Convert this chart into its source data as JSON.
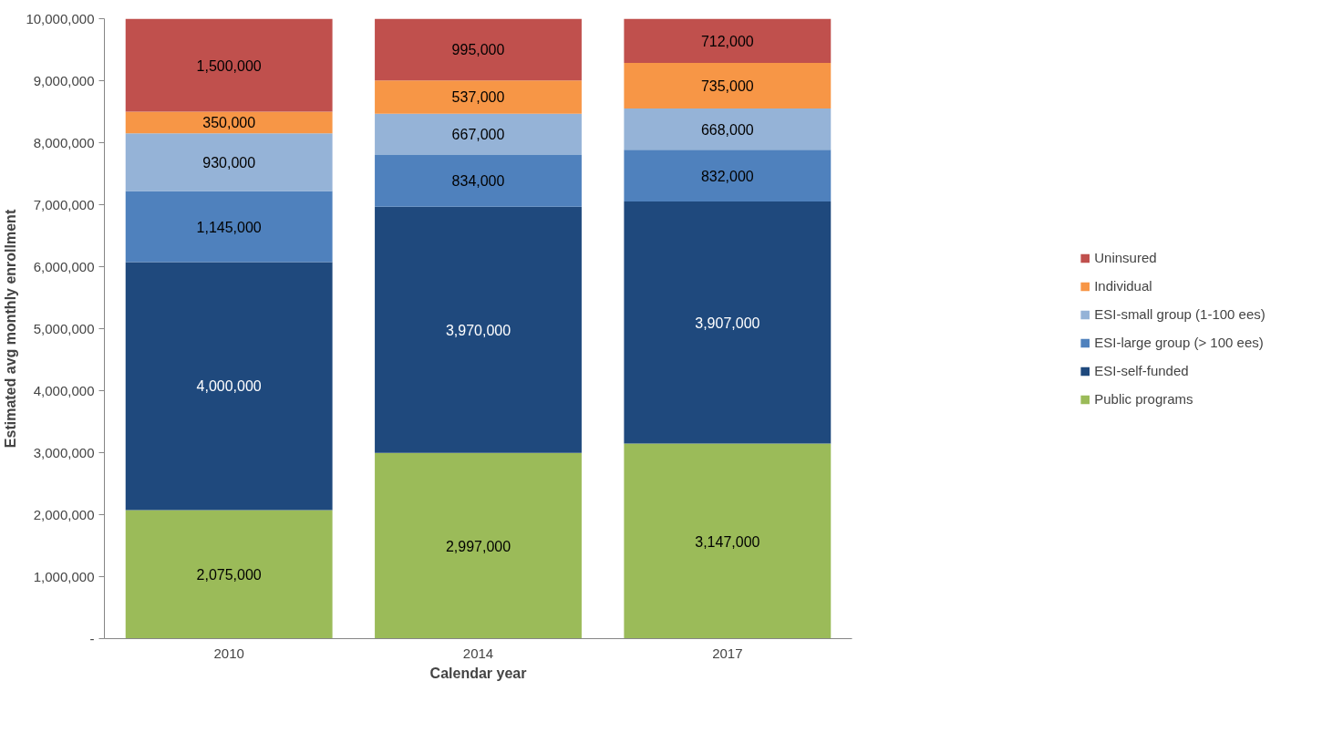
{
  "chart_data": {
    "type": "bar",
    "stacked": true,
    "xlabel": "Calendar year",
    "ylabel": "Estimated avg monthly enrollment",
    "categories": [
      "2010",
      "2014",
      "2017"
    ],
    "series": [
      {
        "name": "Public programs",
        "color": "#9bbb59",
        "values": [
          2075000,
          2997000,
          3147000
        ],
        "value_labels": [
          "2,075,000",
          "2,997,000",
          "3,147,000"
        ]
      },
      {
        "name": "ESI-self-funded",
        "color": "#1f497d",
        "values": [
          4000000,
          3970000,
          3907000
        ],
        "value_labels": [
          "4,000,000",
          "3,970,000",
          "3,907,000"
        ]
      },
      {
        "name": "ESI-large group (> 100 ees)",
        "color": "#4f81bd",
        "values": [
          1145000,
          834000,
          832000
        ],
        "value_labels": [
          "1,145,000",
          "834,000",
          "832,000"
        ]
      },
      {
        "name": "ESI-small group (1-100 ees)",
        "color": "#95b3d7",
        "values": [
          930000,
          667000,
          668000
        ],
        "value_labels": [
          "930,000",
          "667,000",
          "668,000"
        ]
      },
      {
        "name": "Individual",
        "color": "#f79646",
        "values": [
          350000,
          537000,
          735000
        ],
        "value_labels": [
          "350,000",
          "537,000",
          "735,000"
        ]
      },
      {
        "name": "Uninsured",
        "color": "#c0504d",
        "values": [
          1500000,
          995000,
          712000
        ],
        "value_labels": [
          "1,500,000",
          "995,000",
          "712,000"
        ]
      }
    ],
    "ylim": [
      0,
      10001000
    ],
    "yticks": [
      {
        "value": 0,
        "label": "-"
      },
      {
        "value": 1000000,
        "label": "1,000,000"
      },
      {
        "value": 2000000,
        "label": "2,000,000"
      },
      {
        "value": 3000000,
        "label": "3,000,000"
      },
      {
        "value": 4000000,
        "label": "4,000,000"
      },
      {
        "value": 5000000,
        "label": "5,000,000"
      },
      {
        "value": 6000000,
        "label": "6,000,000"
      },
      {
        "value": 7000000,
        "label": "7,000,000"
      },
      {
        "value": 8000000,
        "label": "8,000,000"
      },
      {
        "value": 9000000,
        "label": "9,000,000"
      },
      {
        "value": 10000000,
        "label": "10,000,000"
      }
    ],
    "legend": "right",
    "grid": false
  }
}
